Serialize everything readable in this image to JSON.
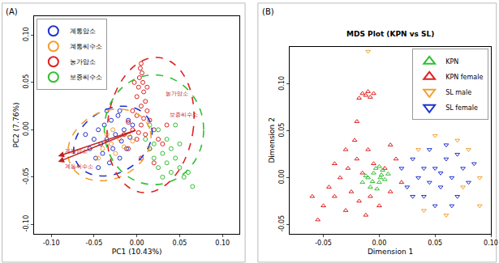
{
  "chart_data": [
    {
      "type": "scatter",
      "panel": "(A)",
      "x_label": "PC1 (10.43%)",
      "y_label": "PC2 (7.76%)",
      "xlim": [
        -0.12,
        0.12
      ],
      "ylim": [
        -0.11,
        0.12
      ],
      "xticks": [
        {
          "value": -0.1,
          "label": "-0.10"
        },
        {
          "value": -0.05,
          "label": "-0.05"
        },
        {
          "value": 0,
          "label": "0.00"
        },
        {
          "value": 0.05,
          "label": "0.05"
        },
        {
          "value": 0.1,
          "label": "0.10"
        }
      ],
      "yticks": [
        {
          "value": -0.1,
          "label": "-0.10"
        },
        {
          "value": -0.05,
          "label": "-0.05"
        },
        {
          "value": 0,
          "label": "0.00"
        },
        {
          "value": 0.05,
          "label": "0.05"
        },
        {
          "value": 0.1,
          "label": "0.10"
        }
      ],
      "grid": false,
      "legend": "top-left",
      "marker": "circle-open",
      "series": [
        {
          "name": "계통암소",
          "color": "#2233cc",
          "x": [
            -0.055,
            -0.05,
            -0.048,
            -0.045,
            -0.042,
            -0.04,
            -0.038,
            -0.035,
            -0.032,
            -0.03,
            -0.028,
            -0.025,
            -0.022,
            -0.02,
            -0.018,
            -0.015,
            -0.012,
            -0.01,
            -0.008,
            -0.005,
            -0.06,
            -0.035,
            -0.045,
            -0.02
          ],
          "y": [
            -0.02,
            -0.01,
            -0.03,
            0.0,
            -0.015,
            -0.025,
            0.005,
            -0.01,
            -0.035,
            0.01,
            -0.02,
            -0.005,
            0.015,
            -0.03,
            -0.012,
            0.0,
            -0.02,
            0.01,
            -0.008,
            0.005,
            -0.005,
            0.02,
            -0.04,
            0.02
          ]
        },
        {
          "name": "계통씨수소",
          "color": "#f0a030",
          "x": [
            -0.04,
            -0.03,
            -0.025,
            -0.02,
            -0.015,
            -0.01,
            -0.035,
            -0.005,
            -0.028,
            -0.045
          ],
          "y": [
            -0.02,
            -0.015,
            -0.025,
            -0.01,
            -0.018,
            -0.005,
            -0.005,
            -0.012,
            0.0,
            -0.03
          ]
        },
        {
          "name": "농가암소",
          "color": "#e02020",
          "x": [
            0.005,
            0.004,
            0.006,
            0.003,
            0.007,
            0.002,
            0.008,
            0.0,
            0.01,
            0.005,
            -0.005,
            0.012,
            0.0,
            0.015,
            -0.01,
            0.005,
            0.02,
            -0.005,
            0.01,
            0.025,
            0.0,
            -0.015,
            0.015,
            0.03,
            0.005,
            0.02,
            -0.01,
            0.035,
            0.008,
            0.002,
            0.012,
            -0.003
          ],
          "y": [
            0.07,
            0.065,
            0.06,
            0.055,
            0.05,
            0.045,
            0.04,
            0.035,
            0.03,
            0.025,
            0.02,
            0.02,
            0.015,
            0.01,
            0.008,
            0.005,
            0.0,
            0.0,
            -0.005,
            -0.01,
            -0.01,
            -0.005,
            -0.02,
            -0.015,
            -0.03,
            -0.035,
            -0.02,
            0.005,
            0.012,
            -0.003,
            0.045,
            0.05
          ]
        },
        {
          "name": "보증씨수소",
          "color": "#30c030",
          "x": [
            0.01,
            0.015,
            0.02,
            0.025,
            0.03,
            0.035,
            0.04,
            0.045,
            0.05,
            0.055,
            0.06,
            0.035,
            0.04,
            0.025,
            0.045,
            0.05,
            0.03,
            0.02,
            0.065,
            0.015
          ],
          "y": [
            -0.01,
            -0.02,
            -0.03,
            -0.04,
            -0.025,
            -0.035,
            -0.045,
            -0.03,
            -0.04,
            -0.05,
            -0.045,
            -0.01,
            -0.02,
            0.0,
            0.005,
            -0.015,
            -0.05,
            -0.015,
            -0.06,
            0.005
          ]
        }
      ],
      "ellipses": [
        {
          "name": "계통암소",
          "color": "#2233cc",
          "cx": -0.028,
          "cy": -0.012,
          "rx": 0.048,
          "ry": 0.034,
          "angle": 25
        },
        {
          "name": "계통씨수소",
          "color": "#f0a030",
          "cx": -0.032,
          "cy": -0.016,
          "rx": 0.05,
          "ry": 0.036,
          "angle": 20
        },
        {
          "name": "농가암소",
          "color": "#e02020",
          "cx": 0.016,
          "cy": 0.005,
          "rx": 0.05,
          "ry": 0.072,
          "angle": -10
        },
        {
          "name": "보증씨수소",
          "color": "#30c030",
          "cx": 0.02,
          "cy": 0.0,
          "rx": 0.058,
          "ry": 0.058,
          "angle": 0
        }
      ],
      "arrows": [
        {
          "text": "계통암소",
          "color": "#c02020",
          "x0": 0,
          "y0": 0,
          "x": -0.092,
          "y": -0.028
        },
        {
          "text": "계통씨수소",
          "color": "#c02020",
          "x0": 0,
          "y0": 0,
          "x": -0.092,
          "y": -0.034
        }
      ],
      "annotations": [
        {
          "text": "농가암소",
          "color": "#c02020",
          "x": 0.032,
          "y": 0.038
        },
        {
          "text": "보증씨수소",
          "color": "#c02020",
          "x": 0.036,
          "y": 0.016
        }
      ]
    },
    {
      "type": "scatter",
      "panel": "(B)",
      "title": "MDS Plot (KPN vs SL)",
      "x_label": "Dimension 1",
      "y_label": "Dimension 2",
      "xlim": [
        -0.08,
        0.1
      ],
      "ylim": [
        -0.06,
        0.14
      ],
      "xticks": [
        {
          "value": -0.05,
          "label": "-0.05"
        },
        {
          "value": 0,
          "label": "0.00"
        },
        {
          "value": 0.05,
          "label": "0.05"
        },
        {
          "value": 0.1,
          "label": "0.10"
        }
      ],
      "yticks": [
        {
          "value": -0.05,
          "label": "-0.05"
        },
        {
          "value": 0,
          "label": "0.00"
        },
        {
          "value": 0.05,
          "label": "0.05"
        },
        {
          "value": 0.1,
          "label": "0.10"
        }
      ],
      "grid": false,
      "legend": "top-right",
      "series": [
        {
          "name": "KPN",
          "color": "#30c030",
          "marker": "triangle-up-open",
          "x": [
            -0.01,
            -0.005,
            0.0,
            -0.008,
            0.002,
            -0.003,
            0.005,
            -0.012,
            0.0,
            -0.006,
            0.003,
            -0.002,
            0.008,
            -0.015,
            0.001
          ],
          "y": [
            0.0,
            0.005,
            -0.005,
            -0.01,
            0.003,
            0.01,
            -0.002,
            0.002,
            0.012,
            -0.004,
            0.008,
            -0.012,
            0.004,
            -0.005,
            0.0
          ]
        },
        {
          "name": "KPN female",
          "color": "#e02020",
          "marker": "triangle-up-open",
          "x": [
            -0.05,
            -0.045,
            -0.04,
            -0.035,
            -0.03,
            -0.028,
            -0.025,
            -0.02,
            -0.018,
            -0.015,
            -0.012,
            -0.01,
            -0.008,
            -0.005,
            0.0,
            0.005,
            0.01,
            0.015,
            0.02,
            -0.06,
            -0.022,
            -0.015,
            -0.012,
            -0.01,
            -0.008,
            -0.005,
            -0.018,
            -0.02,
            -0.03,
            0.01,
            -0.04,
            -0.055
          ],
          "y": [
            -0.03,
            -0.01,
            -0.02,
            0.0,
            -0.035,
            0.01,
            -0.015,
            0.02,
            -0.025,
            0.005,
            -0.04,
            0.03,
            -0.02,
            0.015,
            -0.03,
            0.01,
            -0.015,
            0.02,
            -0.005,
            -0.02,
            0.04,
            0.09,
            0.088,
            0.092,
            0.086,
            0.09,
            0.085,
            0.06,
            0.03,
            0.035,
            0.015,
            -0.045
          ]
        },
        {
          "name": "SL male",
          "color": "#f0a030",
          "marker": "triangle-down-open",
          "x": [
            0.035,
            0.05,
            0.07,
            0.09,
            0.08,
            0.06,
            0.09,
            0.04,
            -0.01,
            0.075
          ],
          "y": [
            0.03,
            0.045,
            0.04,
            0.0,
            0.03,
            -0.04,
            -0.03,
            -0.035,
            0.135,
            -0.01
          ]
        },
        {
          "name": "SL female",
          "color": "#2233cc",
          "marker": "triangle-down-open",
          "x": [
            0.02,
            0.025,
            0.03,
            0.035,
            0.04,
            0.045,
            0.05,
            0.055,
            0.06,
            0.065,
            0.07,
            0.075,
            0.08,
            0.085,
            0.04,
            0.05,
            0.06,
            0.07,
            0.03,
            0.055,
            0.065,
            0.045
          ],
          "y": [
            0.01,
            -0.01,
            0.02,
            0.0,
            -0.02,
            0.03,
            0.01,
            -0.01,
            0.02,
            0.0,
            -0.02,
            0.01,
            -0.005,
            0.015,
            0.01,
            -0.03,
            0.035,
            0.025,
            -0.02,
            0.005,
            -0.03,
            -0.005
          ]
        }
      ]
    }
  ]
}
